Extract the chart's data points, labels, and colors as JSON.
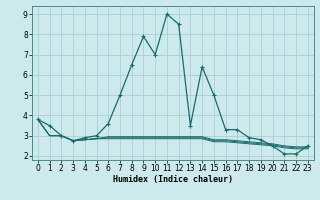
{
  "xlabel": "Humidex (Indice chaleur)",
  "xlim": [
    -0.5,
    23.5
  ],
  "ylim": [
    1.8,
    9.4
  ],
  "xticks": [
    0,
    1,
    2,
    3,
    4,
    5,
    6,
    7,
    8,
    9,
    10,
    11,
    12,
    13,
    14,
    15,
    16,
    17,
    18,
    19,
    20,
    21,
    22,
    23
  ],
  "yticks": [
    2,
    3,
    4,
    5,
    6,
    7,
    8,
    9
  ],
  "background_color": "#cce9ec",
  "grid_color": "#aacfd4",
  "line_color": "#1a6b6b",
  "main_line": {
    "x": [
      0,
      1,
      2,
      3,
      4,
      5,
      6,
      7,
      8,
      9,
      10,
      11,
      12,
      13,
      14,
      15,
      16,
      17,
      18,
      19,
      20,
      21,
      22,
      23
    ],
    "y": [
      3.8,
      3.5,
      3.0,
      2.75,
      2.9,
      3.0,
      3.6,
      5.0,
      6.5,
      7.9,
      7.0,
      9.0,
      8.5,
      3.5,
      6.4,
      5.0,
      3.3,
      3.3,
      2.9,
      2.8,
      2.5,
      2.1,
      2.1,
      2.5
    ]
  },
  "flat_lines": [
    {
      "x": [
        0,
        1,
        2,
        3,
        4,
        5,
        6,
        7,
        8,
        9,
        10,
        11,
        12,
        13,
        14,
        15,
        16,
        17,
        18,
        19,
        20,
        21,
        22,
        23
      ],
      "y": [
        3.8,
        3.0,
        3.0,
        2.75,
        2.8,
        2.85,
        2.85,
        2.85,
        2.85,
        2.85,
        2.85,
        2.85,
        2.85,
        2.85,
        2.85,
        2.7,
        2.7,
        2.65,
        2.6,
        2.55,
        2.5,
        2.4,
        2.35,
        2.35
      ]
    },
    {
      "x": [
        0,
        1,
        2,
        3,
        4,
        5,
        6,
        7,
        8,
        9,
        10,
        11,
        12,
        13,
        14,
        15,
        16,
        17,
        18,
        19,
        20,
        21,
        22,
        23
      ],
      "y": [
        3.8,
        3.0,
        3.0,
        2.75,
        2.8,
        2.85,
        2.9,
        2.9,
        2.9,
        2.9,
        2.9,
        2.9,
        2.9,
        2.9,
        2.9,
        2.75,
        2.75,
        2.7,
        2.65,
        2.6,
        2.55,
        2.45,
        2.4,
        2.4
      ]
    },
    {
      "x": [
        0,
        1,
        2,
        3,
        4,
        5,
        6,
        7,
        8,
        9,
        10,
        11,
        12,
        13,
        14,
        15,
        16,
        17,
        18,
        19,
        20,
        21,
        22,
        23
      ],
      "y": [
        3.8,
        3.0,
        3.0,
        2.75,
        2.8,
        2.85,
        2.95,
        2.95,
        2.95,
        2.95,
        2.95,
        2.95,
        2.95,
        2.95,
        2.95,
        2.8,
        2.8,
        2.75,
        2.7,
        2.65,
        2.6,
        2.5,
        2.45,
        2.45
      ]
    }
  ]
}
